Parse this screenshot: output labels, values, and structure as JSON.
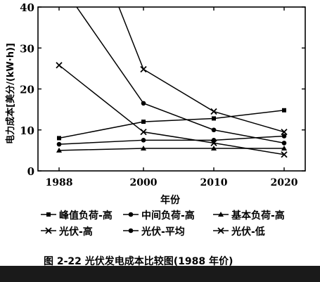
{
  "chart_data": {
    "type": "line",
    "ylabel": "电力成本[美分/(kW·h)]",
    "xlabel": "年份",
    "xlim": [
      1985,
      2023
    ],
    "ylim": [
      0,
      40
    ],
    "xticks": [
      1988,
      2000,
      2010,
      2020
    ],
    "yticks": [
      0,
      10,
      20,
      30,
      40
    ],
    "x": [
      1988,
      2000,
      2010,
      2020
    ],
    "grid": false,
    "legend_position": "bottom",
    "series": [
      {
        "name": "峰值负荷-高",
        "marker": "square",
        "values": [
          8,
          12,
          12.8,
          14.8
        ]
      },
      {
        "name": "中间负荷-高",
        "marker": "circle",
        "values": [
          6.5,
          7.5,
          7.5,
          8.5
        ]
      },
      {
        "name": "基本负荷-高",
        "marker": "triangle",
        "values": [
          5,
          5.5,
          5.5,
          5.5
        ]
      },
      {
        "name": "光伏-高",
        "marker": "x",
        "values": [
          null,
          24.8,
          14.5,
          9.5
        ]
      },
      {
        "name": "光伏-平均",
        "marker": "circle",
        "values": [
          null,
          16.5,
          10,
          6.8
        ]
      },
      {
        "name": "光伏-低",
        "marker": "x",
        "values": [
          25.8,
          9.5,
          6.8,
          4
        ]
      }
    ],
    "offscale_segments": [
      {
        "series": "光伏-高",
        "exit_x": 1996.5,
        "from_y_above": 40
      },
      {
        "series": "光伏-平均",
        "exit_x": 1990.5,
        "from_y_above": 40
      }
    ]
  },
  "caption": "图 2-22  光伏发电成本比较图(1988 年价)"
}
